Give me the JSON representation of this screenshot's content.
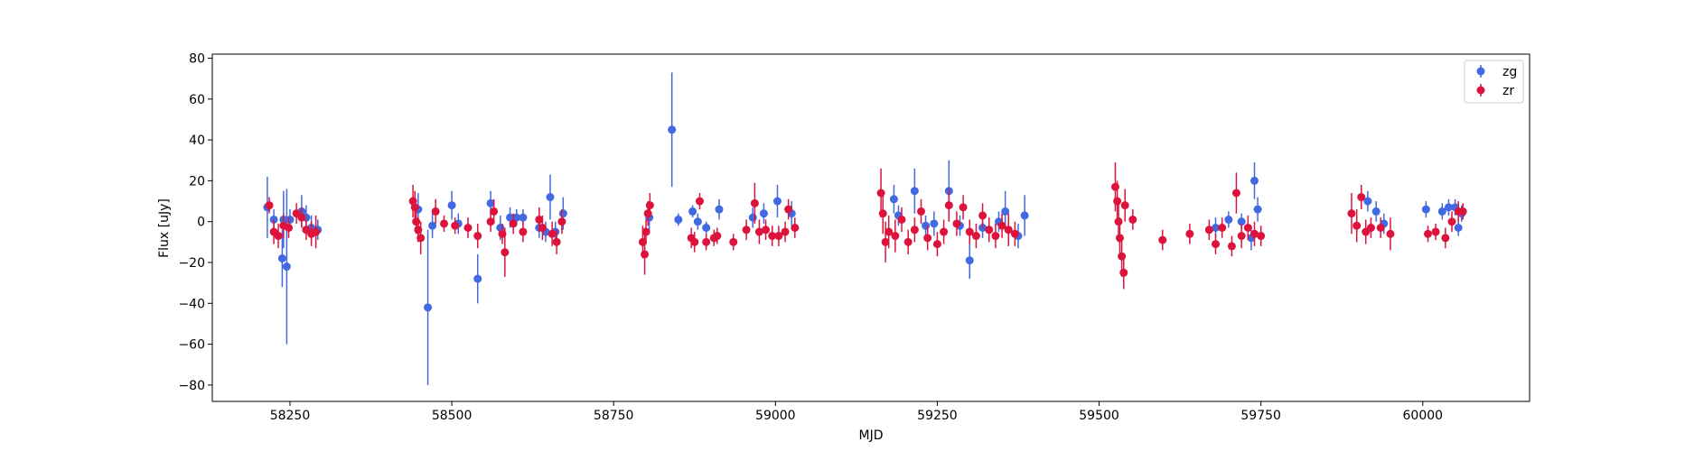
{
  "chart_data": {
    "type": "scatter",
    "title": "",
    "xlabel": "MJD",
    "ylabel": "Flux [uJy]",
    "xlim": [
      58130,
      60165
    ],
    "ylim": [
      -88,
      82
    ],
    "xticks": [
      58250,
      58500,
      58750,
      59000,
      59250,
      59500,
      59750,
      60000
    ],
    "yticks": [
      -80,
      -60,
      -40,
      -20,
      0,
      20,
      40,
      60,
      80
    ],
    "grid": false,
    "legend_position": "top-right",
    "series": [
      {
        "name": "zg",
        "color": "#4169e1",
        "marker": "circle",
        "errorbars": true,
        "points": [
          [
            58215,
            7,
            15
          ],
          [
            58225,
            1,
            5
          ],
          [
            58238,
            -18,
            14
          ],
          [
            58245,
            -22,
            38
          ],
          [
            58240,
            1,
            14
          ],
          [
            58250,
            1,
            5
          ],
          [
            58268,
            5,
            8
          ],
          [
            58275,
            2,
            6
          ],
          [
            58283,
            -3,
            6
          ],
          [
            58293,
            -4,
            5
          ],
          [
            58448,
            6,
            8
          ],
          [
            58463,
            -42,
            38
          ],
          [
            58470,
            -2,
            6
          ],
          [
            58500,
            8,
            7
          ],
          [
            58510,
            -1,
            5
          ],
          [
            58540,
            -28,
            12
          ],
          [
            58560,
            9,
            6
          ],
          [
            58575,
            -3,
            6
          ],
          [
            58590,
            2,
            5
          ],
          [
            58600,
            2,
            4
          ],
          [
            58610,
            2,
            4
          ],
          [
            58635,
            -3,
            5
          ],
          [
            58645,
            -5,
            5
          ],
          [
            58652,
            12,
            11
          ],
          [
            58660,
            -5,
            5
          ],
          [
            58672,
            4,
            8
          ],
          [
            58805,
            2,
            8
          ],
          [
            58840,
            45,
            28
          ],
          [
            58850,
            1,
            3
          ],
          [
            58872,
            5,
            3
          ],
          [
            58880,
            0,
            4
          ],
          [
            58893,
            -3,
            3
          ],
          [
            58913,
            6,
            5
          ],
          [
            58965,
            2,
            5
          ],
          [
            58982,
            4,
            5
          ],
          [
            59003,
            10,
            8
          ],
          [
            59025,
            4,
            6
          ],
          [
            59183,
            11,
            7
          ],
          [
            59190,
            3,
            5
          ],
          [
            59215,
            15,
            11
          ],
          [
            59232,
            -2,
            5
          ],
          [
            59245,
            -1,
            6
          ],
          [
            59268,
            15,
            15
          ],
          [
            59285,
            -2,
            5
          ],
          [
            59300,
            -19,
            9
          ],
          [
            59320,
            -3,
            5
          ],
          [
            59345,
            0,
            5
          ],
          [
            59355,
            5,
            10
          ],
          [
            59375,
            -7,
            6
          ],
          [
            59385,
            3,
            10
          ],
          [
            59680,
            -3,
            5
          ],
          [
            59700,
            1,
            4
          ],
          [
            59720,
            0,
            4
          ],
          [
            59735,
            -8,
            6
          ],
          [
            59740,
            20,
            9
          ],
          [
            59745,
            6,
            6
          ],
          [
            59915,
            10,
            5
          ],
          [
            59928,
            5,
            5
          ],
          [
            59940,
            -1,
            5
          ],
          [
            60005,
            6,
            4
          ],
          [
            60030,
            5,
            4
          ],
          [
            60040,
            7,
            4
          ],
          [
            60050,
            7,
            4
          ],
          [
            60055,
            -3,
            4
          ],
          [
            60060,
            4,
            4
          ]
        ]
      },
      {
        "name": "zr",
        "color": "#dc143c",
        "marker": "circle",
        "errorbars": true,
        "points": [
          [
            58218,
            8,
            4
          ],
          [
            58225,
            -5,
            6
          ],
          [
            58232,
            -7,
            6
          ],
          [
            58240,
            -2,
            6
          ],
          [
            58248,
            -3,
            5
          ],
          [
            58260,
            4,
            5
          ],
          [
            58268,
            2,
            5
          ],
          [
            58275,
            -4,
            5
          ],
          [
            58283,
            -6,
            6
          ],
          [
            58290,
            -5,
            8
          ],
          [
            58440,
            10,
            8
          ],
          [
            58443,
            7,
            8
          ],
          [
            58445,
            0,
            6
          ],
          [
            58448,
            -4,
            6
          ],
          [
            58452,
            -8,
            8
          ],
          [
            58475,
            5,
            6
          ],
          [
            58488,
            -1,
            4
          ],
          [
            58505,
            -2,
            4
          ],
          [
            58525,
            -3,
            5
          ],
          [
            58540,
            -7,
            6
          ],
          [
            58560,
            0,
            5
          ],
          [
            58565,
            5,
            6
          ],
          [
            58578,
            -6,
            5
          ],
          [
            58582,
            -15,
            12
          ],
          [
            58595,
            -1,
            5
          ],
          [
            58610,
            -5,
            5
          ],
          [
            58635,
            1,
            6
          ],
          [
            58640,
            -3,
            6
          ],
          [
            58655,
            -6,
            6
          ],
          [
            58662,
            -10,
            6
          ],
          [
            58670,
            0,
            6
          ],
          [
            58795,
            -10,
            8
          ],
          [
            58798,
            -16,
            10
          ],
          [
            58800,
            -5,
            6
          ],
          [
            58803,
            4,
            6
          ],
          [
            58806,
            8,
            6
          ],
          [
            58870,
            -8,
            5
          ],
          [
            58875,
            -10,
            5
          ],
          [
            58883,
            10,
            4
          ],
          [
            58893,
            -10,
            4
          ],
          [
            58905,
            -8,
            4
          ],
          [
            58910,
            -7,
            4
          ],
          [
            58935,
            -10,
            4
          ],
          [
            58955,
            -4,
            5
          ],
          [
            58968,
            9,
            10
          ],
          [
            58975,
            -5,
            6
          ],
          [
            58985,
            -4,
            5
          ],
          [
            58995,
            -7,
            5
          ],
          [
            59005,
            -7,
            5
          ],
          [
            59015,
            -5,
            5
          ],
          [
            59020,
            6,
            5
          ],
          [
            59030,
            -3,
            5
          ],
          [
            59163,
            14,
            12
          ],
          [
            59166,
            4,
            10
          ],
          [
            59170,
            -10,
            10
          ],
          [
            59175,
            -5,
            8
          ],
          [
            59185,
            -7,
            8
          ],
          [
            59195,
            1,
            6
          ],
          [
            59205,
            -10,
            6
          ],
          [
            59215,
            -4,
            6
          ],
          [
            59225,
            5,
            6
          ],
          [
            59235,
            -8,
            6
          ],
          [
            59250,
            -11,
            6
          ],
          [
            59260,
            -5,
            6
          ],
          [
            59268,
            8,
            8
          ],
          [
            59280,
            -1,
            6
          ],
          [
            59290,
            7,
            6
          ],
          [
            59300,
            -5,
            6
          ],
          [
            59310,
            -7,
            6
          ],
          [
            59320,
            3,
            6
          ],
          [
            59330,
            -4,
            6
          ],
          [
            59340,
            -7,
            6
          ],
          [
            59350,
            -2,
            6
          ],
          [
            59360,
            -4,
            8
          ],
          [
            59370,
            -6,
            6
          ],
          [
            59525,
            17,
            12
          ],
          [
            59528,
            10,
            10
          ],
          [
            59530,
            0,
            10
          ],
          [
            59532,
            -8,
            10
          ],
          [
            59535,
            -17,
            10
          ],
          [
            59538,
            -25,
            8
          ],
          [
            59540,
            8,
            8
          ],
          [
            59552,
            1,
            5
          ],
          [
            59598,
            -9,
            5
          ],
          [
            59640,
            -6,
            5
          ],
          [
            59670,
            -4,
            5
          ],
          [
            59680,
            -11,
            5
          ],
          [
            59690,
            -3,
            5
          ],
          [
            59705,
            -12,
            5
          ],
          [
            59712,
            14,
            10
          ],
          [
            59720,
            -7,
            6
          ],
          [
            59730,
            -3,
            6
          ],
          [
            59740,
            -6,
            6
          ],
          [
            59750,
            -7,
            5
          ],
          [
            59890,
            4,
            10
          ],
          [
            59898,
            -2,
            8
          ],
          [
            59905,
            12,
            6
          ],
          [
            59912,
            -5,
            6
          ],
          [
            59920,
            -3,
            5
          ],
          [
            59935,
            -3,
            5
          ],
          [
            59950,
            -6,
            8
          ],
          [
            60008,
            -6,
            4
          ],
          [
            60020,
            -5,
            4
          ],
          [
            60035,
            -8,
            5
          ],
          [
            60045,
            0,
            5
          ],
          [
            60055,
            5,
            5
          ],
          [
            60062,
            5,
            4
          ]
        ]
      }
    ]
  }
}
